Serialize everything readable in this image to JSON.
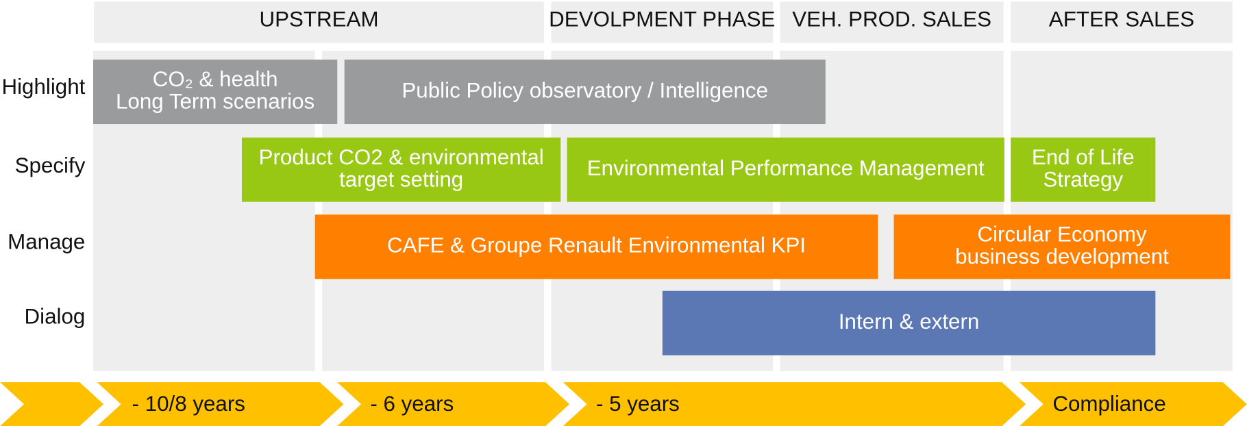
{
  "phases": [
    "UPSTREAM",
    "DEVOLPMENT PHASE",
    "VEH. PROD. SALES",
    "AFTER SALES"
  ],
  "rows": [
    "Highlight",
    "Specify",
    "Manage",
    "Dialog"
  ],
  "bars": [
    {
      "lines": [
        "CO₂ & health",
        "Long Term scenarios"
      ]
    },
    {
      "lines": [
        "Public Policy observatory / Intelligence"
      ]
    },
    {
      "lines": [
        "Product CO2 & environmental",
        "target setting"
      ]
    },
    {
      "lines": [
        "Environmental Performance Management"
      ]
    },
    {
      "lines": [
        "End of Life",
        "Strategy"
      ]
    },
    {
      "lines": [
        "CAFE & Groupe Renault Environmental KPI"
      ]
    },
    {
      "lines": [
        "Circular Economy",
        "business development"
      ]
    },
    {
      "lines": [
        "Intern & extern"
      ]
    }
  ],
  "timeline": [
    "- 10/8 years",
    "- 6 years",
    "- 5 years",
    "Compliance"
  ]
}
